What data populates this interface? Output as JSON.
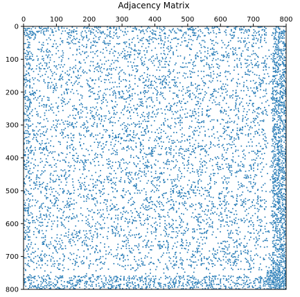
{
  "chart_data": {
    "type": "heatmap",
    "title": "Adjacency Matrix",
    "xlabel": "",
    "ylabel": "",
    "xlim": [
      0,
      800
    ],
    "ylim": [
      800,
      0
    ],
    "x_ticks": [
      "0",
      "100",
      "200",
      "300",
      "400",
      "500",
      "600",
      "700",
      "800"
    ],
    "y_ticks": [
      "0",
      "100",
      "200",
      "300",
      "400",
      "500",
      "600",
      "700",
      "800"
    ],
    "x_axis_position": "top",
    "grid": false,
    "legend": "none",
    "matrix_size": 800,
    "marker_color": "#1f77b4",
    "description_of_values": "binary sparse adjacency; nonzero entries drawn as dots",
    "structure": {
      "background_density": 0.16,
      "dense_blocks": [
        {
          "rows": [
            740,
            800
          ],
          "cols": [
            740,
            800
          ],
          "density": 0.85
        },
        {
          "rows": [
            5,
            40
          ],
          "cols": [
            5,
            40
          ],
          "density": 0.6
        }
      ],
      "dense_bands": [
        {
          "axis": "cols",
          "range": [
            760,
            800
          ],
          "density": 0.55
        },
        {
          "axis": "rows",
          "range": [
            760,
            800
          ],
          "density": 0.35
        },
        {
          "axis": "cols",
          "range": [
            0,
            20
          ],
          "density": 0.35
        },
        {
          "axis": "rows",
          "range": [
            0,
            20
          ],
          "density": 0.3
        }
      ],
      "sparse_gaps": [
        {
          "axis": "rows",
          "range": [
            740,
            760
          ],
          "density": 0.03
        },
        {
          "axis": "cols",
          "range": [
            740,
            755
          ],
          "density": 0.05
        }
      ]
    }
  }
}
